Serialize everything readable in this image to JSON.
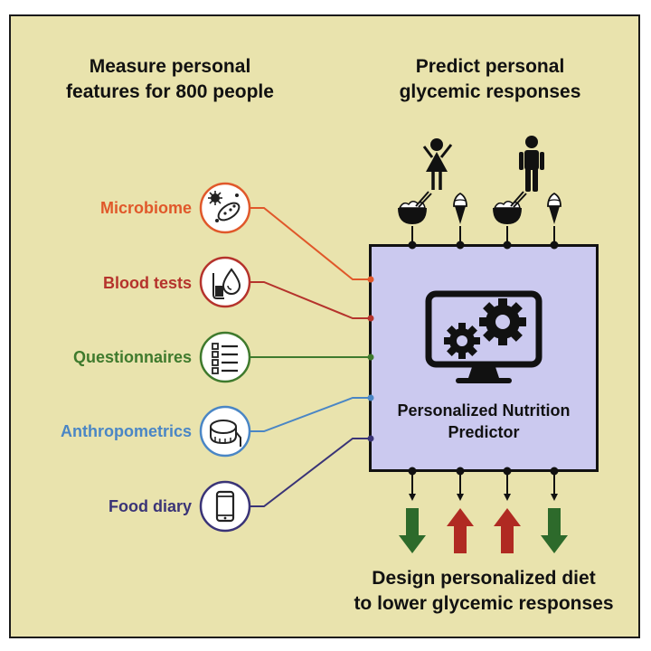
{
  "headings": {
    "left": "Measure personal\nfeatures for 800 people",
    "right": "Predict personal\nglycemic responses",
    "bottom": "Design personalized diet\nto lower glycemic responses"
  },
  "features": [
    {
      "label": "Microbiome",
      "color": "#e0582a",
      "icon": "microbe-icon"
    },
    {
      "label": "Blood tests",
      "color": "#b5332c",
      "icon": "blood-test-icon"
    },
    {
      "label": "Questionnaires",
      "color": "#3f7a2d",
      "icon": "checklist-icon"
    },
    {
      "label": "Anthropometrics",
      "color": "#4a86c5",
      "icon": "measuring-tape-icon"
    },
    {
      "label": "Food diary",
      "color": "#3a3477",
      "icon": "smartphone-icon"
    }
  ],
  "predictor": {
    "label": "Personalized Nutrition\nPredictor",
    "icon": "computer-gears-icon"
  },
  "people": [
    "girl-icon",
    "man-icon"
  ],
  "foods": [
    "rice-bowl-icon",
    "ice-cream-icon",
    "rice-bowl-icon",
    "ice-cream-icon"
  ],
  "responses": [
    {
      "direction": "down",
      "color": "#2d6a2b"
    },
    {
      "direction": "up",
      "color": "#b02a22"
    },
    {
      "direction": "up",
      "color": "#b02a22"
    },
    {
      "direction": "down",
      "color": "#2d6a2b"
    }
  ]
}
